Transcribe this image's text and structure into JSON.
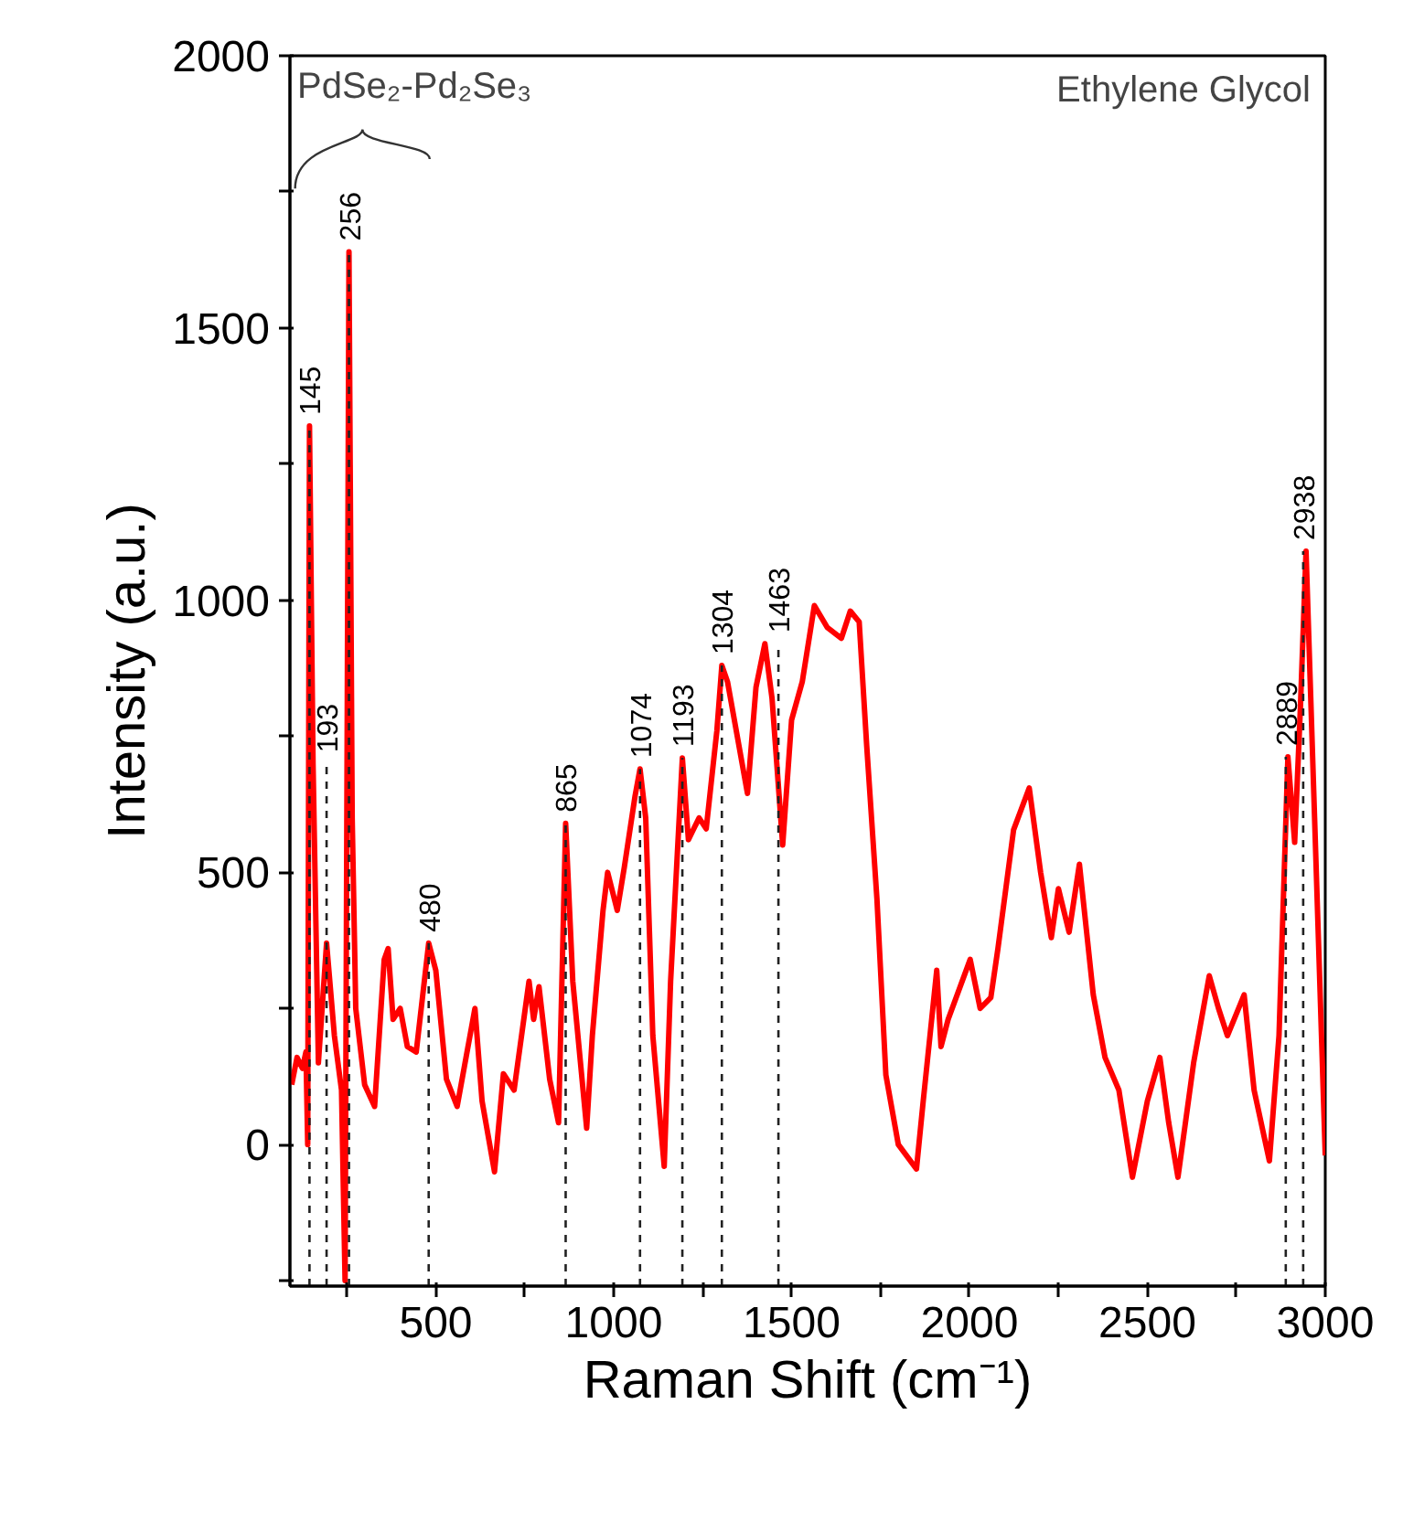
{
  "chart_data": {
    "type": "line",
    "xlabel": "Raman Shift (cm⁻¹)",
    "ylabel": "Intensity (a.u.)",
    "xlim": [
      90,
      3000
    ],
    "ylim": [
      -260,
      2000
    ],
    "xticks": [
      {
        "value": 250,
        "label": null
      },
      500,
      {
        "value": 750,
        "label": null
      },
      1000,
      {
        "value": 1250,
        "label": null
      },
      1500,
      {
        "value": 1750,
        "label": null
      },
      2000,
      {
        "value": 2250,
        "label": null
      },
      2500,
      {
        "value": 2750,
        "label": null
      },
      3000
    ],
    "yticks": [
      {
        "value": -250,
        "label": null
      },
      0,
      {
        "value": 250,
        "label": null
      },
      500,
      {
        "value": 750,
        "label": null
      },
      1000,
      {
        "value": 1250,
        "label": null
      },
      1500,
      {
        "value": 1750,
        "label": null
      },
      2000
    ],
    "grid": false,
    "line_style": "solid",
    "series": [
      {
        "color": "#ff0000",
        "x": [
          95,
          110,
          125,
          135,
          140,
          145,
          155,
          170,
          193,
          215,
          235,
          245,
          256,
          265,
          275,
          300,
          328,
          355,
          366,
          380,
          400,
          420,
          445,
          480,
          500,
          530,
          560,
          610,
          630,
          665,
          690,
          720,
          762,
          775,
          790,
          820,
          845,
          865,
          885,
          924,
          940,
          970,
          983,
          1010,
          1030,
          1060,
          1074,
          1090,
          1110,
          1142,
          1160,
          1193,
          1210,
          1240,
          1260,
          1290,
          1304,
          1320,
          1376,
          1400,
          1425,
          1445,
          1475,
          1500,
          1530,
          1564,
          1600,
          1640,
          1665,
          1690,
          1711,
          1740,
          1765,
          1800,
          1851,
          1870,
          1908,
          1920,
          1940,
          2002,
          2030,
          2060,
          2080,
          2124,
          2168,
          2200,
          2230,
          2250,
          2280,
          2309,
          2348,
          2381,
          2420,
          2458,
          2500,
          2535,
          2560,
          2586,
          2630,
          2674,
          2700,
          2725,
          2772,
          2800,
          2843,
          2870,
          2895,
          2914,
          2930,
          2946,
          2970,
          3000
        ],
        "values": [
          110,
          160,
          140,
          170,
          0,
          1320,
          700,
          150,
          370,
          200,
          100,
          -250,
          1640,
          600,
          250,
          110,
          70,
          340,
          360,
          230,
          250,
          180,
          170,
          370,
          320,
          120,
          70,
          250,
          80,
          -50,
          130,
          100,
          300,
          230,
          290,
          120,
          40,
          590,
          300,
          30,
          200,
          430,
          500,
          430,
          510,
          640,
          690,
          600,
          200,
          -40,
          300,
          710,
          560,
          600,
          580,
          760,
          880,
          850,
          645,
          840,
          920,
          820,
          550,
          780,
          850,
          990,
          950,
          930,
          980,
          960,
          734,
          450,
          128,
          0,
          -45,
          80,
          320,
          180,
          230,
          340,
          250,
          270,
          360,
          578,
          655,
          500,
          380,
          470,
          390,
          515,
          275,
          160,
          100,
          -60,
          80,
          160,
          40,
          -60,
          150,
          310,
          250,
          200,
          275,
          100,
          -30,
          200,
          712,
          555,
          800,
          1090,
          600,
          -20
        ]
      }
    ],
    "annotations": [
      "PdSe₂-Pd₂Se₃",
      "Ethylene Glycol"
    ],
    "ref_lines": [
      {
        "axis": "x",
        "value": 145,
        "label": "145",
        "color": "#222222",
        "line_style": "dashed"
      },
      {
        "axis": "x",
        "value": 193,
        "label": "193",
        "color": "#222222",
        "line_style": "dashed"
      },
      {
        "axis": "x",
        "value": 256,
        "label": "256",
        "color": "#222222",
        "line_style": "dashed"
      },
      {
        "axis": "x",
        "value": 480,
        "label": "480",
        "color": "#222222",
        "line_style": "dashed"
      },
      {
        "axis": "x",
        "value": 865,
        "label": "865",
        "color": "#222222",
        "line_style": "dashed"
      },
      {
        "axis": "x",
        "value": 1074,
        "label": "1074",
        "color": "#222222",
        "line_style": "dashed"
      },
      {
        "axis": "x",
        "value": 1193,
        "label": "1193",
        "color": "#222222",
        "line_style": "dashed"
      },
      {
        "axis": "x",
        "value": 1304,
        "label": "1304",
        "color": "#222222",
        "line_style": "dashed"
      },
      {
        "axis": "x",
        "value": 1463,
        "label": "1463",
        "color": "#222222",
        "line_style": "dashed"
      },
      {
        "axis": "x",
        "value": 2889,
        "label": "2889",
        "color": "#222222",
        "line_style": "dashed"
      },
      {
        "axis": "x",
        "value": 2938,
        "label": "2938",
        "color": "#222222",
        "line_style": "dashed"
      }
    ]
  }
}
